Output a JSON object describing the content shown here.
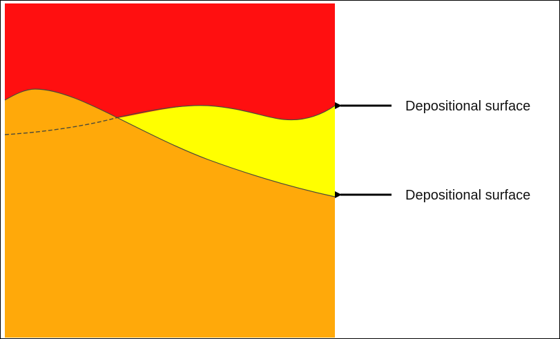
{
  "colors": {
    "upper_layer": "#ff0f10",
    "middle_layer": "#ffff00",
    "lower_layer": "#ffa90a",
    "surface_line": "#4a4a3a",
    "arrow": "#000000",
    "background": "#ffffff"
  },
  "labels": {
    "upper_surface": "Depositional surface",
    "lower_surface": "Depositional surface"
  }
}
